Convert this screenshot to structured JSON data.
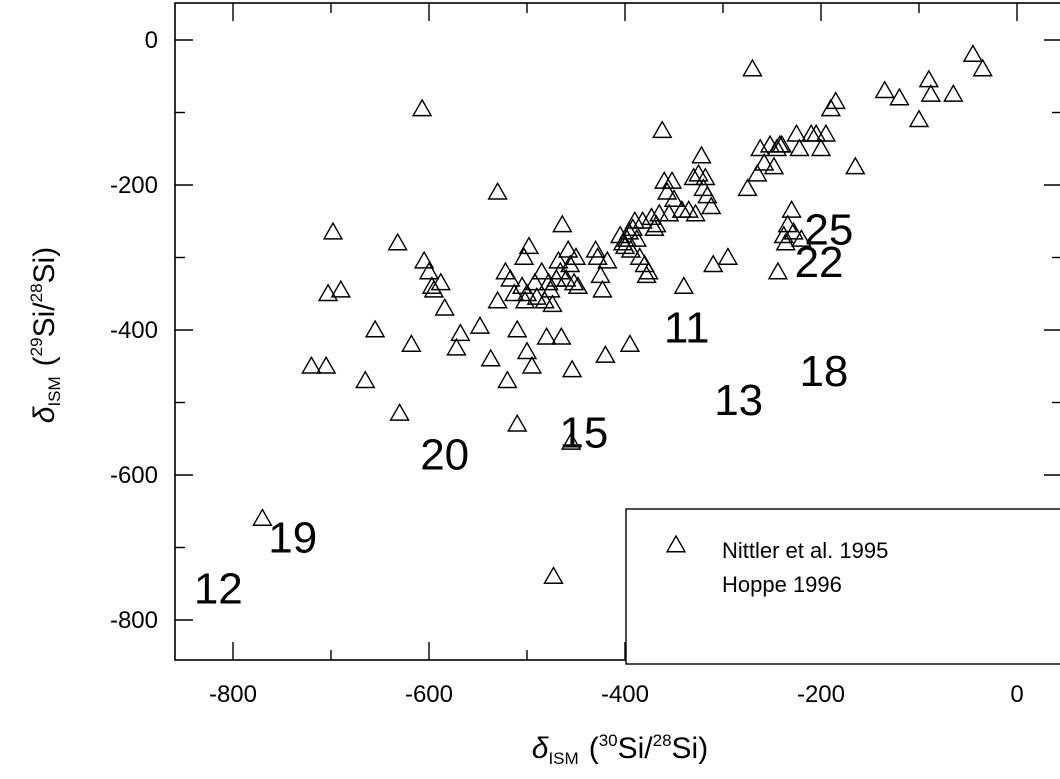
{
  "chart_data": {
    "type": "scatter",
    "title": "",
    "xlabel": {
      "delta": "δ",
      "sub": "ISM",
      "open": "(",
      "sup1": "30",
      "mid": "Si/",
      "sup2": "28",
      "end": "Si)"
    },
    "ylabel": {
      "delta": "δ",
      "sub": "ISM",
      "open": "(",
      "sup1": "29",
      "mid": "Si/",
      "sup2": "28",
      "end": "Si)"
    },
    "xlim": [
      -850,
      50
    ],
    "ylim": [
      -860,
      50
    ],
    "xticks": [
      -800,
      -600,
      -400,
      -200,
      0
    ],
    "yticks": [
      0,
      -200,
      -400,
      -600,
      -800
    ],
    "xtick_labels": [
      "-800",
      "-600",
      "-400",
      "-200",
      "0"
    ],
    "ytick_labels": [
      "0",
      "-200",
      "-400",
      "-600",
      "-800"
    ],
    "grid": false,
    "legend_position": "bottom-right",
    "legend_entries": [
      {
        "label": "Nittler et al. 1995",
        "marker": "triangle"
      },
      {
        "label": "Hoppe 1996",
        "marker": "text-number"
      }
    ],
    "series": [
      {
        "name": "Nittler et al. 1995",
        "marker": "triangle",
        "points": [
          [
            -770,
            -660
          ],
          [
            -720,
            -450
          ],
          [
            -705,
            -450
          ],
          [
            -703,
            -350
          ],
          [
            -698,
            -265
          ],
          [
            -690,
            -345
          ],
          [
            -665,
            -470
          ],
          [
            -655,
            -400
          ],
          [
            -632,
            -280
          ],
          [
            -630,
            -515
          ],
          [
            -618,
            -420
          ],
          [
            -607,
            -95
          ],
          [
            -605,
            -305
          ],
          [
            -600,
            -320
          ],
          [
            -597,
            -340
          ],
          [
            -595,
            -345
          ],
          [
            -588,
            -335
          ],
          [
            -584,
            -370
          ],
          [
            -572,
            -425
          ],
          [
            -568,
            -405
          ],
          [
            -548,
            -395
          ],
          [
            -537,
            -440
          ],
          [
            -530,
            -210
          ],
          [
            -530,
            -360
          ],
          [
            -522,
            -320
          ],
          [
            -520,
            -470
          ],
          [
            -517,
            -330
          ],
          [
            -513,
            -350
          ],
          [
            -510,
            -530
          ],
          [
            -510,
            -400
          ],
          [
            -505,
            -340
          ],
          [
            -503,
            -300
          ],
          [
            -502,
            -360
          ],
          [
            -500,
            -350
          ],
          [
            -500,
            -430
          ],
          [
            -498,
            -285
          ],
          [
            -495,
            -450
          ],
          [
            -492,
            -335
          ],
          [
            -490,
            -355
          ],
          [
            -485,
            -320
          ],
          [
            -482,
            -360
          ],
          [
            -480,
            -410
          ],
          [
            -478,
            -335
          ],
          [
            -476,
            -345
          ],
          [
            -474,
            -365
          ],
          [
            -473,
            -740
          ],
          [
            -470,
            -330
          ],
          [
            -468,
            -305
          ],
          [
            -466,
            -320
          ],
          [
            -465,
            -410
          ],
          [
            -464,
            -255
          ],
          [
            -460,
            -330
          ],
          [
            -458,
            -290
          ],
          [
            -456,
            -310
          ],
          [
            -455,
            -555
          ],
          [
            -454,
            -455
          ],
          [
            -452,
            -335
          ],
          [
            -450,
            -300
          ],
          [
            -448,
            -340
          ],
          [
            -430,
            -290
          ],
          [
            -428,
            -300
          ],
          [
            -425,
            -325
          ],
          [
            -423,
            -345
          ],
          [
            -420,
            -435
          ],
          [
            -418,
            -305
          ],
          [
            -405,
            -270
          ],
          [
            -402,
            -280
          ],
          [
            -400,
            -285
          ],
          [
            -398,
            -275
          ],
          [
            -396,
            -265
          ],
          [
            -395,
            -420
          ],
          [
            -394,
            -290
          ],
          [
            -392,
            -260
          ],
          [
            -390,
            -250
          ],
          [
            -388,
            -275
          ],
          [
            -385,
            -300
          ],
          [
            -382,
            -250
          ],
          [
            -380,
            -310
          ],
          [
            -378,
            -325
          ],
          [
            -376,
            -320
          ],
          [
            -373,
            -245
          ],
          [
            -370,
            -260
          ],
          [
            -368,
            -255
          ],
          [
            -365,
            -240
          ],
          [
            -362,
            -125
          ],
          [
            -360,
            -195
          ],
          [
            -357,
            -210
          ],
          [
            -355,
            -240
          ],
          [
            -352,
            -195
          ],
          [
            -350,
            -220
          ],
          [
            -342,
            -235
          ],
          [
            -340,
            -340
          ],
          [
            -335,
            -235
          ],
          [
            -330,
            -190
          ],
          [
            -328,
            -240
          ],
          [
            -325,
            -185
          ],
          [
            -322,
            -160
          ],
          [
            -320,
            -205
          ],
          [
            -318,
            -190
          ],
          [
            -316,
            -215
          ],
          [
            -312,
            -230
          ],
          [
            -310,
            -310
          ],
          [
            -295,
            -300
          ],
          [
            -275,
            -205
          ],
          [
            -270,
            -40
          ],
          [
            -265,
            -185
          ],
          [
            -262,
            -150
          ],
          [
            -258,
            -170
          ],
          [
            -252,
            -145
          ],
          [
            -248,
            -175
          ],
          [
            -245,
            -150
          ],
          [
            -244,
            -320
          ],
          [
            -242,
            -145
          ],
          [
            -240,
            -145
          ],
          [
            -238,
            -270
          ],
          [
            -236,
            -280
          ],
          [
            -234,
            -255
          ],
          [
            -230,
            -235
          ],
          [
            -228,
            -265
          ],
          [
            -225,
            -130
          ],
          [
            -222,
            -150
          ],
          [
            -220,
            -275
          ],
          [
            -210,
            -130
          ],
          [
            -205,
            -130
          ],
          [
            -200,
            -150
          ],
          [
            -195,
            -130
          ],
          [
            -190,
            -95
          ],
          [
            -185,
            -85
          ],
          [
            -165,
            -175
          ],
          [
            -135,
            -70
          ],
          [
            -120,
            -80
          ],
          [
            -100,
            -110
          ],
          [
            -90,
            -55
          ],
          [
            -88,
            -75
          ],
          [
            -65,
            -75
          ],
          [
            -45,
            -20
          ],
          [
            -35,
            -40
          ]
        ]
      },
      {
        "name": "Hoppe 1996",
        "marker": "text-number",
        "points": [
          {
            "x": -815,
            "y": -755,
            "label": "12"
          },
          {
            "x": -739,
            "y": -685,
            "label": "19"
          },
          {
            "x": -584,
            "y": -570,
            "label": "20"
          },
          {
            "x": -442,
            "y": -540,
            "label": "15"
          },
          {
            "x": -337,
            "y": -395,
            "label": "11"
          },
          {
            "x": -284,
            "y": -495,
            "label": "13"
          },
          {
            "x": -197,
            "y": -455,
            "label": "18"
          },
          {
            "x": -192,
            "y": -260,
            "label": "25"
          },
          {
            "x": -202,
            "y": -305,
            "label": "22"
          }
        ]
      }
    ]
  }
}
